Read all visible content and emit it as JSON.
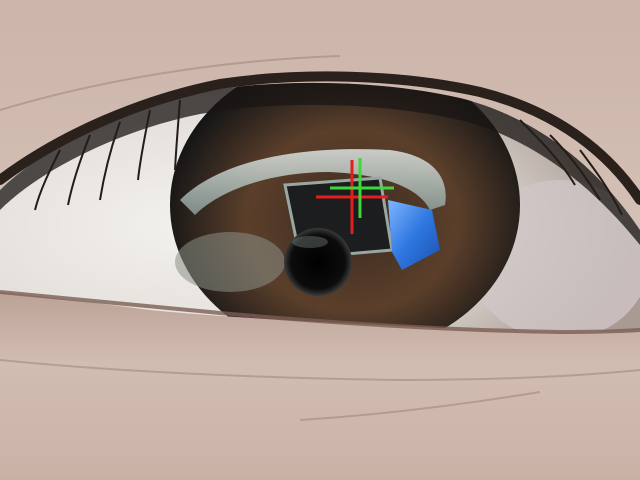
{
  "image": {
    "subject": "close-up-eye-with-reflection",
    "colors": {
      "skin_light": "#d9c5bb",
      "skin_mid": "#c4aca0",
      "skin_shadow": "#9a7f74",
      "sclera": "#e6e3df",
      "iris_dark": "#1a1c1d",
      "iris_brown": "#5b3f2b",
      "pupil": "#0a0a0a",
      "reflection_window": "#2f78e0",
      "reflection_glare": "#c8d4d0"
    }
  },
  "overlay": {
    "markers": [
      {
        "name": "gaze-estimate-crosshair-red",
        "color": "#e0201c"
      },
      {
        "name": "gaze-estimate-crosshair-green",
        "color": "#3fd83a"
      }
    ]
  }
}
